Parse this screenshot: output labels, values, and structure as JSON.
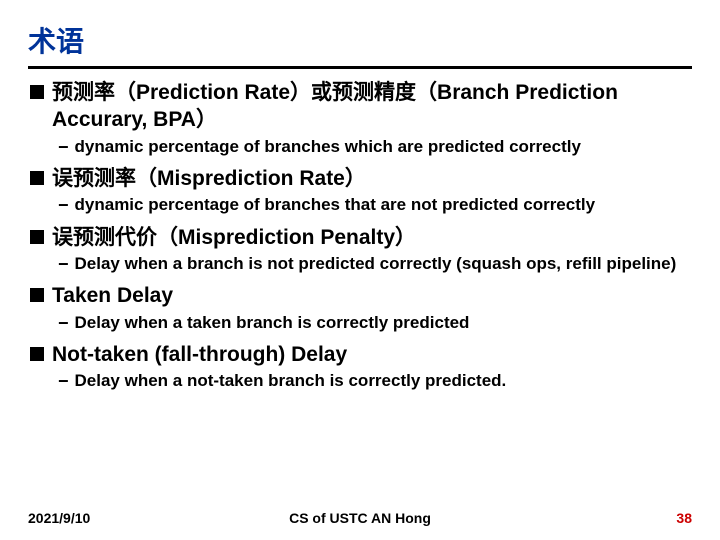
{
  "title": "术语",
  "colors": {
    "title": "#003399",
    "text": "#000000",
    "pagenum": "#cc0000",
    "rule": "#000000",
    "background": "#ffffff"
  },
  "items": [
    {
      "heading": "预测率（Prediction Rate）或预测精度（Branch Prediction Accurary, BPA）",
      "sub": "dynamic percentage of branches which are predicted correctly"
    },
    {
      "heading": "误预测率（Misprediction Rate）",
      "sub": "dynamic percentage of branches that are not predicted correctly"
    },
    {
      "heading": "误预测代价（Misprediction Penalty）",
      "sub": " Delay when a branch is not predicted correctly (squash ops, refill pipeline)"
    },
    {
      "heading": "Taken Delay",
      "sub": "Delay when a taken branch is correctly predicted"
    },
    {
      "heading": "Not-taken (fall-through) Delay",
      "sub": "Delay when a not-taken branch is correctly predicted."
    }
  ],
  "footer": {
    "date": "2021/9/10",
    "center": "CS of USTC AN Hong",
    "page": "38"
  }
}
